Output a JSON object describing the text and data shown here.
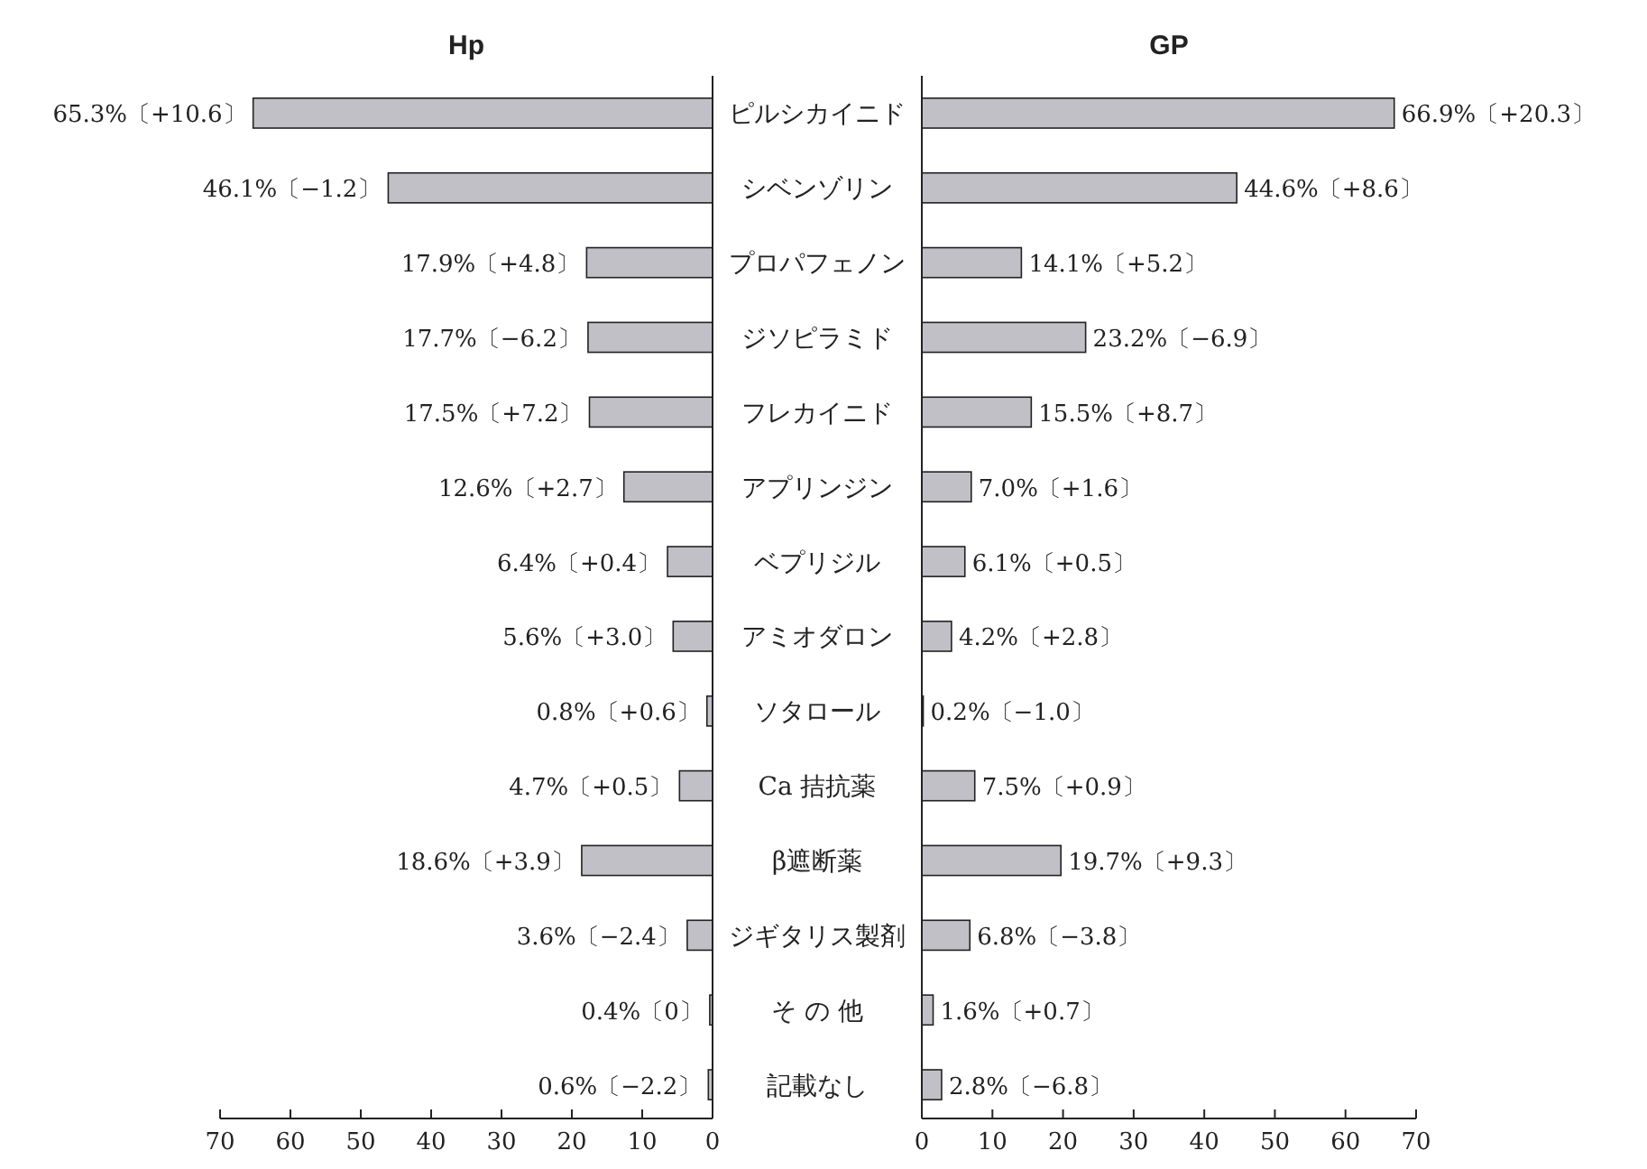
{
  "chart_data": [
    {
      "type": "bar",
      "orientation": "horizontal",
      "title": "Hp",
      "color": "#c0c0c6",
      "categories": [
        "ピルシカイニド",
        "シベンゾリン",
        "プロパフェノン",
        "ジソピラミド",
        "フレカイニド",
        "アプリンジン",
        "ベプリジル",
        "アミオダロン",
        "ソタロール",
        "Ca 拮抗薬",
        "β遮断薬",
        "ジギタリス製剤",
        "そ の 他",
        "記載なし"
      ],
      "values": [
        65.3,
        46.1,
        17.9,
        17.7,
        17.5,
        12.6,
        6.4,
        5.6,
        0.8,
        4.7,
        18.6,
        3.6,
        0.4,
        0.6
      ],
      "value_labels": [
        "65.3%〔+10.6〕",
        "46.1%〔−1.2〕",
        "17.9%〔+4.8〕",
        "17.7%〔−6.2〕",
        "17.5%〔+7.2〕",
        "12.6%〔+2.7〕",
        "6.4%〔+0.4〕",
        "5.6%〔+3.0〕",
        "0.8%〔+0.6〕",
        "4.7%〔+0.5〕",
        "18.6%〔+3.9〕",
        "3.6%〔−2.4〕",
        "0.4%〔0〕",
        "0.6%〔−2.2〕"
      ],
      "xlim": [
        70,
        0
      ],
      "xticks": [
        70,
        60,
        50,
        40,
        30,
        20,
        10,
        0
      ]
    },
    {
      "type": "bar",
      "orientation": "horizontal",
      "title": "GP",
      "color": "#c0c0c6",
      "tick_labels": "x",
      "values": [
        66.9,
        44.6,
        14.1,
        23.2,
        15.5,
        7.0,
        6.1,
        4.2,
        0.2,
        7.5,
        19.7,
        6.8,
        1.6,
        2.8
      ],
      "value_labels": [
        "66.9%〔+20.3〕",
        "44.6%〔+8.6〕",
        "14.1%〔+5.2〕",
        "23.2%〔−6.9〕",
        "15.5%〔+8.7〕",
        "7.0%〔+1.6〕",
        "6.1%〔+0.5〕",
        "4.2%〔+2.8〕",
        "0.2%〔−1.0〕",
        "7.5%〔+0.9〕",
        "19.7%〔+9.3〕",
        "6.8%〔−3.8〕",
        "1.6%〔+0.7〕",
        "2.8%〔−6.8〕"
      ],
      "xlim": [
        0,
        70
      ],
      "xticks": [
        0,
        10,
        20,
        30,
        40,
        50,
        60,
        70
      ]
    }
  ]
}
